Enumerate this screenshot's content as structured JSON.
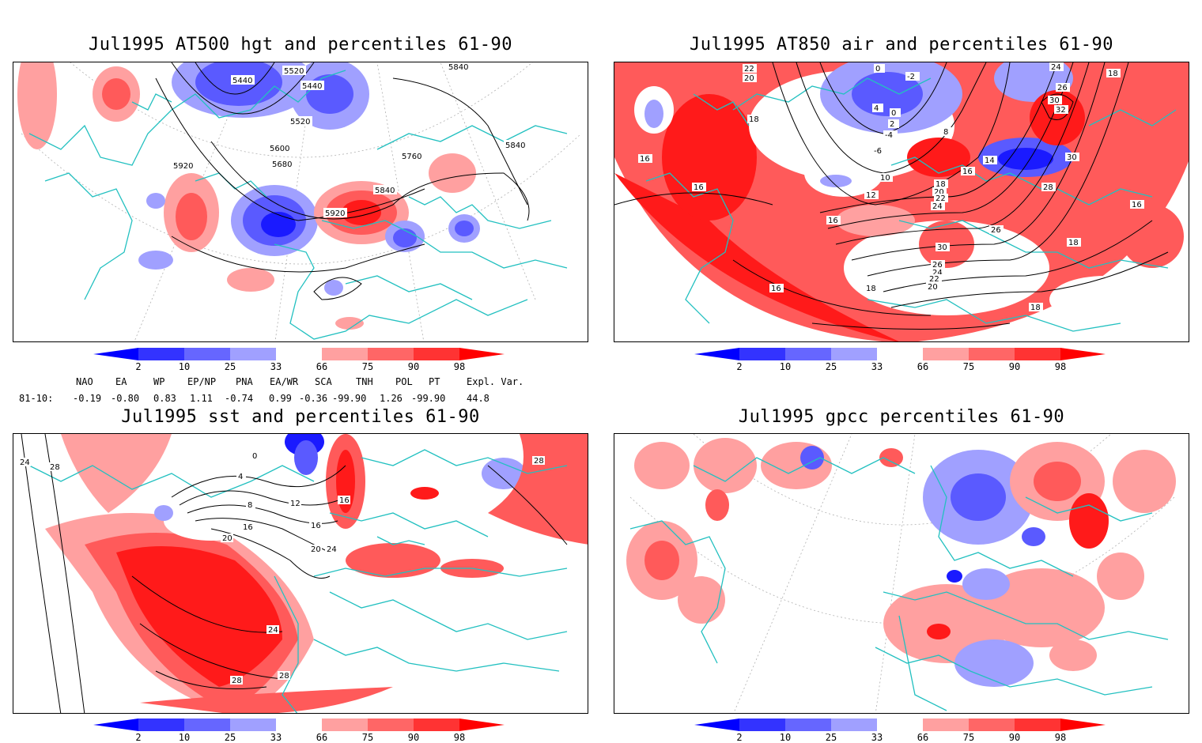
{
  "panels": [
    {
      "title": "Jul1995 AT500 hgt and percentiles 61-90",
      "contour_labels": [
        "5440",
        "5520",
        "5440",
        "5840",
        "5520",
        "5600",
        "5680",
        "5760",
        "5920",
        "5840",
        "5920",
        "5840"
      ]
    },
    {
      "title": "Jul1995 AT850 air and percentiles 61-90",
      "contour_labels": [
        "22",
        "20",
        "0",
        "-2",
        "24",
        "26",
        "18",
        "18",
        "4",
        "0",
        "2",
        "30",
        "32",
        "16",
        "-6",
        "8",
        "-4",
        "10",
        "14",
        "16",
        "30",
        "16",
        "12",
        "18",
        "20",
        "22",
        "24",
        "28",
        "16",
        "26",
        "18",
        "30",
        "16",
        "26",
        "24",
        "22",
        "20",
        "18",
        "16",
        "18"
      ]
    },
    {
      "title": "Jul1995 sst and percentiles 61-90",
      "contour_labels": [
        "24",
        "28",
        "0",
        "4",
        "8",
        "12",
        "16",
        "16",
        "20",
        "24",
        "28",
        "16",
        "20",
        "24",
        "28",
        "28"
      ]
    },
    {
      "title": "Jul1995 gpcc percentiles 61-90",
      "contour_labels": []
    }
  ],
  "colorbar": {
    "labels": [
      "2",
      "10",
      "25",
      "33",
      "66",
      "75",
      "90",
      "98"
    ],
    "colors": [
      "#0000ff",
      "#3333ff",
      "#6666ff",
      "#a0a0ff",
      "#ffffff",
      "#ffa0a0",
      "#ff6666",
      "#ff3333",
      "#ff0000"
    ]
  },
  "indices": {
    "header": [
      "NAO",
      "EA",
      "WP",
      "EP/NP",
      "PNA",
      "EA/WR",
      "SCA",
      "TNH",
      "POL",
      "PT",
      "Expl. Var."
    ],
    "row_label": "81-10:",
    "values": [
      "-0.19",
      "-0.80",
      "0.83",
      "1.11",
      "-0.74",
      "0.99",
      "-0.36",
      "-99.90",
      "1.26",
      "-99.90",
      "44.8"
    ]
  },
  "map_colors": {
    "coast": "#22c0c0",
    "red_strong": "#ff1a1a",
    "red_mid": "#ff5a5a",
    "red_light": "#ffa0a0",
    "blue_strong": "#1a1aff",
    "blue_mid": "#5a5aff",
    "blue_light": "#a0a0ff"
  }
}
